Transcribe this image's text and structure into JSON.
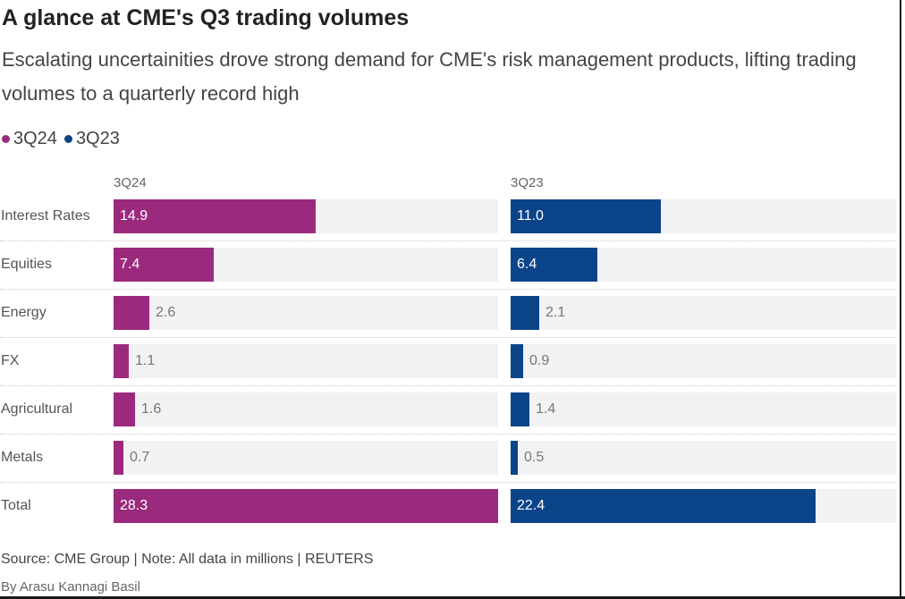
{
  "title": "A glance at CME's Q3 trading volumes",
  "subtitle": "Escalating uncertainities drove strong demand for CME's risk management products, lifting trading volumes to a quarterly record high",
  "colors": {
    "3Q24": "#9b2a7e",
    "3Q23": "#0b4488",
    "track": "#f2f1f3"
  },
  "source": "Source: CME Group | Note: All data in millions | REUTERS",
  "byline": "By Arasu Kannagi Basil",
  "chart_data": {
    "type": "bar",
    "orientation": "horizontal",
    "categories": [
      "Interest Rates",
      "Equities",
      "Energy",
      "FX",
      "Agricultural",
      "Metals",
      "Total"
    ],
    "series": [
      {
        "name": "3Q24",
        "values": [
          14.9,
          7.4,
          2.6,
          1.1,
          1.6,
          0.7,
          28.3
        ]
      },
      {
        "name": "3Q23",
        "values": [
          11.0,
          6.4,
          2.1,
          0.9,
          1.4,
          0.5,
          22.4
        ]
      }
    ],
    "legend": [
      "3Q24",
      "3Q23"
    ],
    "legend_position": "top-left",
    "panels": [
      "3Q24",
      "3Q23"
    ],
    "xlabel": "",
    "ylabel": "",
    "grid": false
  }
}
